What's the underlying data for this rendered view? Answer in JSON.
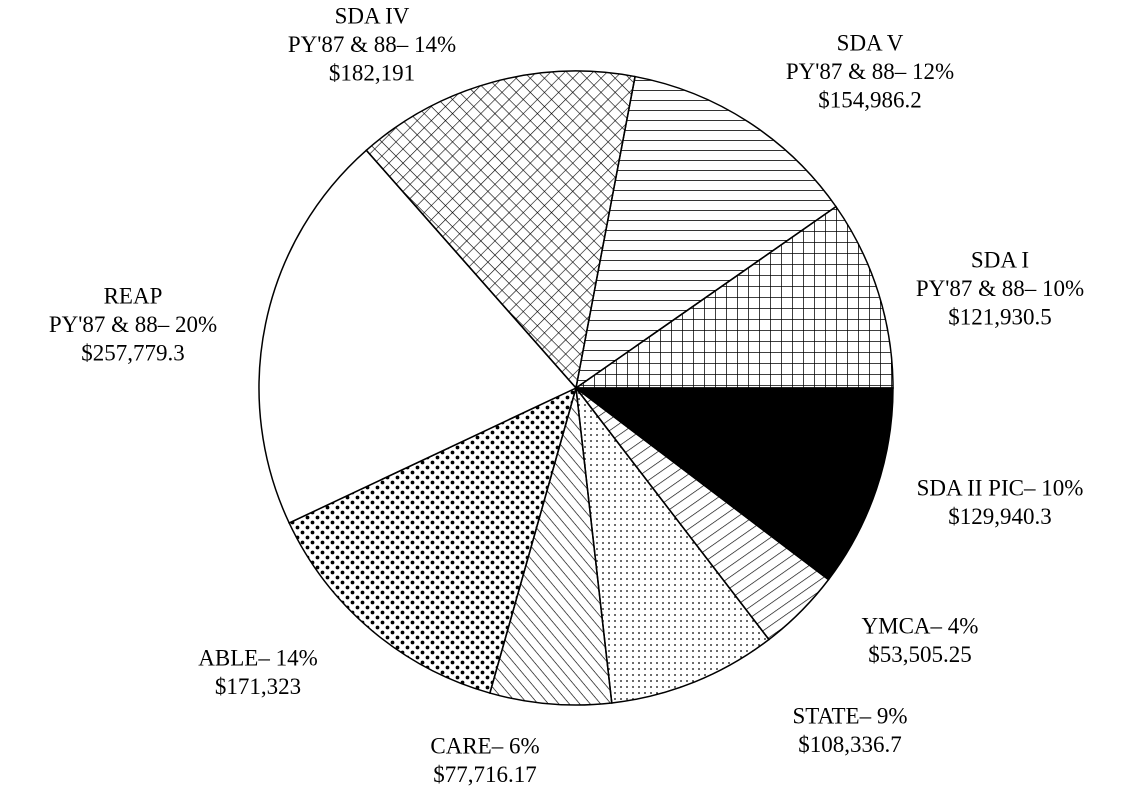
{
  "chart_data": {
    "type": "pie",
    "label_lines": [
      [
        "SDA II PIC– 10%"
      ],
      [
        "YMCA– 4%"
      ],
      [
        "STATE– 9%"
      ],
      [
        "CARE– 6%"
      ],
      [
        "ABLE– 14%"
      ],
      [
        "REAP",
        "PY'87 & 88– 20%"
      ],
      [
        "SDA IV",
        "PY'87 & 88– 14%"
      ],
      [
        "SDA V",
        "PY'87 & 88– 12%"
      ],
      [
        "SDA I",
        "PY'87 & 88– 10%"
      ]
    ],
    "values": [
      129940.3,
      53505.25,
      108336.7,
      77716.17,
      171323,
      257779.3,
      182191,
      154986.2,
      121930.5
    ],
    "value_labels": [
      "$129,940.3",
      "$53,505.25",
      "$108,336.7",
      "$77,716.17",
      "$171,323",
      "$257,779.3",
      "$182,191",
      "$154,986.2",
      "$121,930.5"
    ],
    "patterns": [
      "solid",
      "diagonal-up",
      "fine-dots",
      "diagonal-down",
      "bold-dots",
      "blank",
      "crosshatch",
      "horizontal",
      "grid"
    ]
  }
}
